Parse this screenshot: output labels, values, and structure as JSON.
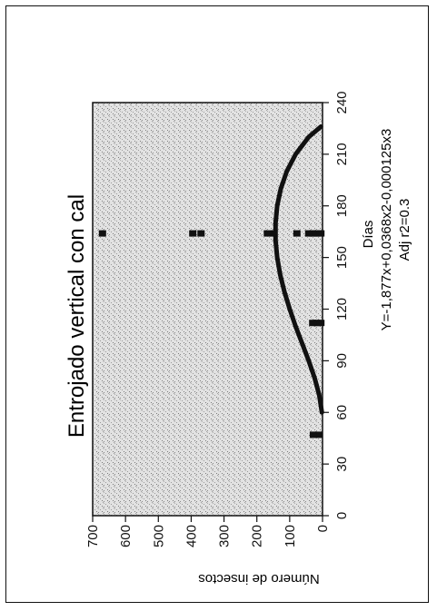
{
  "chart_data": {
    "type": "scatter",
    "title": "Entrojado vertical con cal",
    "xlabel": "Días",
    "ylabel": "Número de insectos",
    "equation": "Y=-1,877x+0,0368x2-0,000125x3",
    "adj_r2": "Adj r2=0.3",
    "xlim": [
      0,
      240
    ],
    "ylim": [
      0,
      700
    ],
    "x_ticks": [
      0,
      30,
      60,
      90,
      120,
      150,
      180,
      210,
      240
    ],
    "y_ticks": [
      0,
      100,
      200,
      300,
      400,
      500,
      600,
      700
    ],
    "x_tick_labels": [
      "0",
      "30",
      "60",
      "90",
      "120",
      "150",
      "180",
      "210",
      "240"
    ],
    "y_tick_labels": [
      "0",
      "100",
      "200",
      "300",
      "400",
      "500",
      "600",
      "700"
    ],
    "grid": false,
    "plot_background": "stippled gray",
    "colors": {
      "marks": "#111111",
      "frame": "#111111"
    },
    "points": [
      {
        "x": 47,
        "y": 12
      },
      {
        "x": 47,
        "y": 28
      },
      {
        "x": 112,
        "y": 5
      },
      {
        "x": 112,
        "y": 18
      },
      {
        "x": 112,
        "y": 30
      },
      {
        "x": 164,
        "y": 5
      },
      {
        "x": 164,
        "y": 18
      },
      {
        "x": 164,
        "y": 30
      },
      {
        "x": 164,
        "y": 42
      },
      {
        "x": 164,
        "y": 78
      },
      {
        "x": 164,
        "y": 148
      },
      {
        "x": 164,
        "y": 168
      },
      {
        "x": 164,
        "y": 370
      },
      {
        "x": 164,
        "y": 395
      },
      {
        "x": 164,
        "y": 670
      }
    ],
    "fit_curve": {
      "description": "cubic fit",
      "x": [
        60,
        70,
        80,
        90,
        100,
        110,
        120,
        130,
        140,
        150,
        160,
        170,
        180,
        190,
        200,
        210,
        220,
        226
      ],
      "y": [
        2,
        10,
        24,
        42,
        62,
        82,
        100,
        116,
        129,
        138,
        143,
        143,
        138,
        127,
        109,
        82,
        42,
        5
      ]
    }
  }
}
